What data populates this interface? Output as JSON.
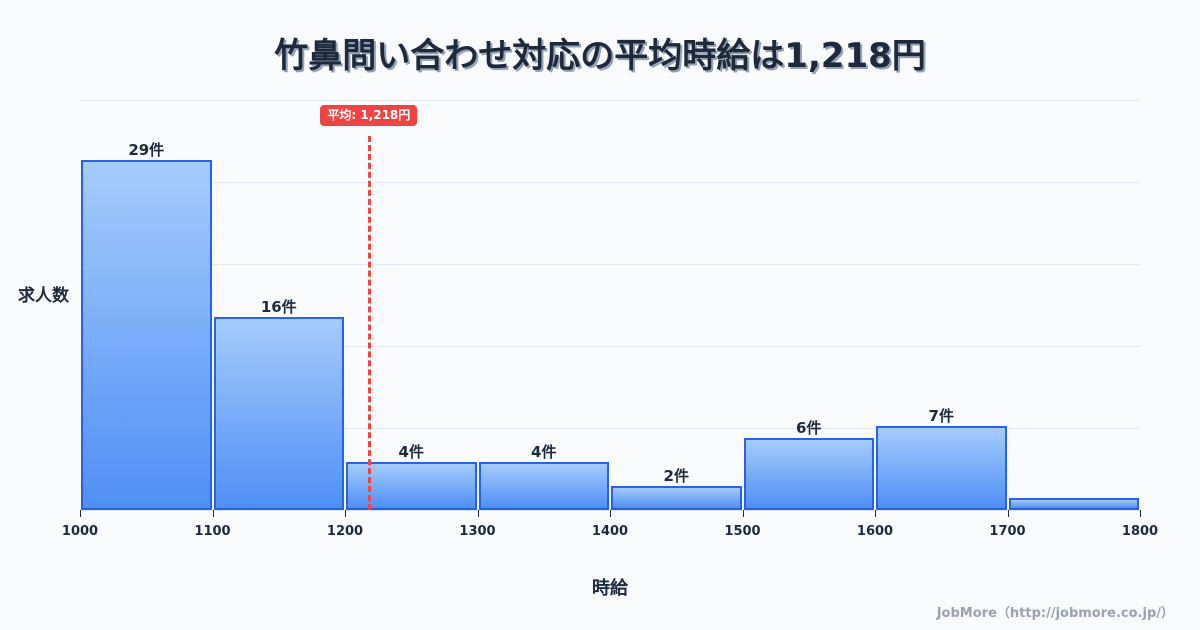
{
  "title": "竹鼻問い合わせ対応の平均時給は1,218円",
  "mean_badge": "平均: 1,218円",
  "ylabel": "求人数",
  "xlabel": "時給",
  "credit": "JobMore（http://jobmore.co.jp/）",
  "colors": {
    "bar_border": "#2563eb",
    "bar_top": "#a5cbfb",
    "bar_bottom": "#4f8ff5",
    "mean_line": "#ef4444",
    "grid": "#e2e8f0",
    "text": "#1e293b"
  },
  "chart_data": {
    "type": "bar",
    "title": "竹鼻問い合わせ対応の平均時給は1,218円",
    "xlabel": "時給",
    "ylabel": "求人数",
    "bins": [
      [
        1000,
        1100
      ],
      [
        1100,
        1200
      ],
      [
        1200,
        1300
      ],
      [
        1300,
        1400
      ],
      [
        1400,
        1500
      ],
      [
        1500,
        1600
      ],
      [
        1600,
        1700
      ],
      [
        1700,
        1800
      ]
    ],
    "categories": [
      "1000-1100",
      "1100-1200",
      "1200-1300",
      "1300-1400",
      "1400-1500",
      "1500-1600",
      "1600-1700",
      "1700-1800"
    ],
    "values": [
      29,
      16,
      4,
      4,
      2,
      6,
      7,
      1
    ],
    "labels": [
      "29件",
      "16件",
      "4件",
      "4件",
      "2件",
      "6件",
      "7件",
      ""
    ],
    "x_ticks": [
      "1000",
      "1100",
      "1200",
      "1300",
      "1400",
      "1500",
      "1600",
      "1700",
      "1800"
    ],
    "xlim": [
      1000,
      1800
    ],
    "ylim": [
      0,
      34
    ],
    "grid": true,
    "mean": 1218,
    "mean_label": "平均: 1,218円"
  }
}
